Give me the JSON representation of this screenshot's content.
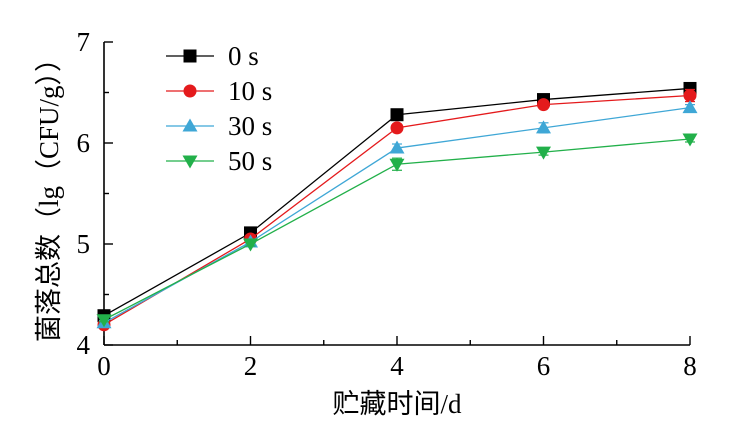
{
  "chart_data": {
    "type": "line",
    "title": "",
    "xlabel": "贮藏时间/d",
    "ylabel": "菌落总数（lg（CFU/g））",
    "x": [
      0,
      2,
      4,
      6,
      8
    ],
    "xlim": [
      0,
      8
    ],
    "ylim": [
      4,
      7
    ],
    "xticks": [
      "0",
      "2",
      "4",
      "6",
      "8"
    ],
    "yticks": [
      "4",
      "5",
      "6",
      "7"
    ],
    "grid": false,
    "legend_position": "top-left",
    "series": [
      {
        "name": "0 s",
        "color": "#000000",
        "marker": "square",
        "values": [
          4.29,
          5.11,
          6.28,
          6.43,
          6.54
        ],
        "errors": [
          0.02,
          0.02,
          0.03,
          0.04,
          0.03
        ]
      },
      {
        "name": "10 s",
        "color": "#e41a1c",
        "marker": "circle",
        "values": [
          4.2,
          5.05,
          6.15,
          6.38,
          6.47
        ],
        "errors": [
          0.02,
          0.02,
          0.03,
          0.03,
          0.06
        ]
      },
      {
        "name": "30 s",
        "color": "#3fa7d6",
        "marker": "triangle-up",
        "values": [
          4.22,
          5.02,
          5.95,
          6.15,
          6.35
        ],
        "errors": [
          0.02,
          0.02,
          0.04,
          0.05,
          0.03
        ]
      },
      {
        "name": "50 s",
        "color": "#22b04a",
        "marker": "triangle-down",
        "values": [
          4.25,
          5.0,
          5.79,
          5.91,
          6.04
        ],
        "errors": [
          0.02,
          0.02,
          0.06,
          0.03,
          0.03
        ]
      }
    ]
  }
}
